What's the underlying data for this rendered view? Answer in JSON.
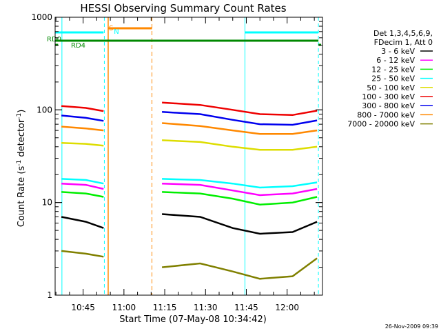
{
  "chart_data": {
    "type": "line",
    "title": "HESSI Observing Summary Count Rates",
    "xlabel": "Start Time (07-May-08 10:34:42)",
    "ylabel_main": "Count Rate (s",
    "ylabel_sup1": "-1",
    "ylabel_mid": " detector",
    "ylabel_sup2": "-1",
    "ylabel_end": ")",
    "yscale": "log",
    "ylim": [
      1,
      1000
    ],
    "xlim_min": [
      34.7,
      133
    ],
    "y_ticks": [
      {
        "v": 1,
        "label": "1"
      },
      {
        "v": 10,
        "label": "10"
      },
      {
        "v": 100,
        "label": "100"
      },
      {
        "v": 1000,
        "label": "1000"
      }
    ],
    "x_ticks": [
      {
        "t": 45,
        "label": "10:45"
      },
      {
        "t": 60,
        "label": "11:00"
      },
      {
        "t": 75,
        "label": "11:15"
      },
      {
        "t": 90,
        "label": "11:30"
      },
      {
        "t": 105,
        "label": "11:45"
      },
      {
        "t": 120,
        "label": "12:00"
      }
    ],
    "legend_header": [
      "Det 1,3,4,5,6,9,",
      "FDecim 1, Att 0"
    ],
    "series": [
      {
        "name": "3 - 6 keV",
        "color": "#000000",
        "seg1": [
          [
            37,
            7
          ],
          [
            46,
            6.2
          ],
          [
            52.5,
            5.3
          ]
        ],
        "seg2": [
          [
            74,
            7.5
          ],
          [
            88,
            7
          ],
          [
            100,
            5.3
          ],
          [
            110,
            4.6
          ],
          [
            122,
            4.8
          ],
          [
            131,
            6.2
          ]
        ]
      },
      {
        "name": "6 - 12 keV",
        "color": "#ff00ff",
        "seg1": [
          [
            37,
            16
          ],
          [
            46,
            15.5
          ],
          [
            52.5,
            14
          ]
        ],
        "seg2": [
          [
            74,
            16
          ],
          [
            88,
            15.5
          ],
          [
            100,
            13.5
          ],
          [
            110,
            12
          ],
          [
            122,
            12.5
          ],
          [
            131,
            14
          ]
        ]
      },
      {
        "name": "12 - 25 keV",
        "color": "#00ee00",
        "seg1": [
          [
            37,
            13
          ],
          [
            46,
            12.5
          ],
          [
            52.5,
            11.5
          ]
        ],
        "seg2": [
          [
            74,
            13
          ],
          [
            88,
            12.5
          ],
          [
            100,
            11
          ],
          [
            110,
            9.5
          ],
          [
            122,
            10
          ],
          [
            131,
            11.5
          ]
        ]
      },
      {
        "name": "25 - 50 keV",
        "color": "#00ffff",
        "seg1": [
          [
            37,
            18
          ],
          [
            46,
            17.5
          ],
          [
            52.5,
            16
          ]
        ],
        "seg2": [
          [
            74,
            18
          ],
          [
            88,
            17.5
          ],
          [
            100,
            16
          ],
          [
            110,
            14.5
          ],
          [
            122,
            15
          ],
          [
            131,
            16.5
          ]
        ]
      },
      {
        "name": "50 - 100 keV",
        "color": "#dddd00",
        "seg1": [
          [
            37,
            44
          ],
          [
            46,
            43
          ],
          [
            52.5,
            41
          ]
        ],
        "seg2": [
          [
            74,
            47
          ],
          [
            88,
            45
          ],
          [
            100,
            40
          ],
          [
            110,
            37
          ],
          [
            122,
            37
          ],
          [
            131,
            40
          ]
        ]
      },
      {
        "name": "100 - 300 keV",
        "color": "#ee0000",
        "seg1": [
          [
            37,
            110
          ],
          [
            46,
            105
          ],
          [
            52.5,
            97
          ]
        ],
        "seg2": [
          [
            74,
            120
          ],
          [
            88,
            113
          ],
          [
            100,
            100
          ],
          [
            110,
            90
          ],
          [
            122,
            88
          ],
          [
            131,
            98
          ]
        ]
      },
      {
        "name": "300 - 800 keV",
        "color": "#0000ee",
        "seg1": [
          [
            37,
            87
          ],
          [
            46,
            82
          ],
          [
            52.5,
            76
          ]
        ],
        "seg2": [
          [
            74,
            95
          ],
          [
            88,
            90
          ],
          [
            100,
            78
          ],
          [
            110,
            70
          ],
          [
            122,
            69
          ],
          [
            131,
            77
          ]
        ]
      },
      {
        "name": "800 - 7000 keV",
        "color": "#ff8800",
        "seg1": [
          [
            37,
            66
          ],
          [
            46,
            63
          ],
          [
            52.5,
            60
          ]
        ],
        "seg2": [
          [
            74,
            72
          ],
          [
            88,
            67
          ],
          [
            100,
            60
          ],
          [
            110,
            55
          ],
          [
            122,
            55
          ],
          [
            131,
            60
          ]
        ]
      },
      {
        "name": "7000 - 20000 keV",
        "color": "#808000",
        "seg1": [
          [
            37,
            3
          ],
          [
            46,
            2.8
          ],
          [
            52.5,
            2.6
          ]
        ],
        "seg2": [
          [
            74,
            2
          ],
          [
            88,
            2.2
          ],
          [
            100,
            1.8
          ],
          [
            110,
            1.5
          ],
          [
            122,
            1.6
          ],
          [
            131,
            2.5
          ]
        ]
      }
    ],
    "flags": [
      {
        "label": "S",
        "color": "#ff8800"
      },
      {
        "label": "N",
        "color": "#00ffff"
      },
      {
        "label": "RD0",
        "color": "#008800"
      },
      {
        "label": "RD4",
        "color": "#008800"
      }
    ],
    "timestamp": "26-Nov-2009 09:39"
  }
}
